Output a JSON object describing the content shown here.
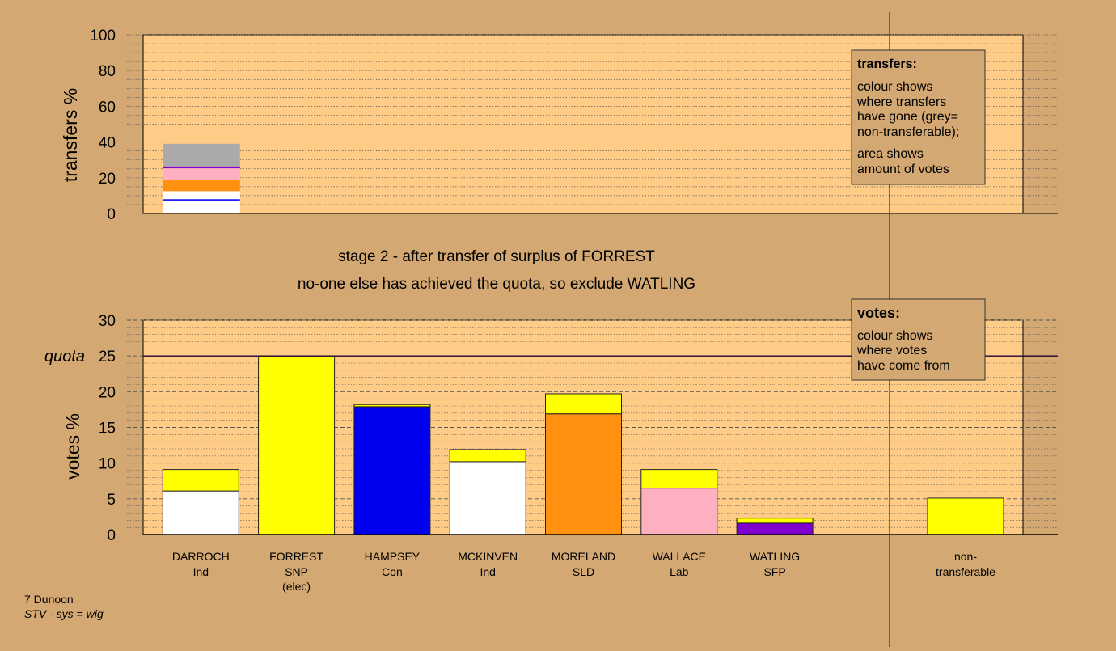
{
  "colors": {
    "background": "#d4a872",
    "plot_area": "#ffcc88",
    "legend_box": "#d4a872",
    "Ind": "#ffffff",
    "SNP": "#ffff00",
    "Con": "#0000ee",
    "SLD": "#ff9010",
    "Lab": "#ffb0c0",
    "SFP": "#8000d0",
    "non_transferable": "#aaaaaa"
  },
  "header": {
    "stage_line": "stage 2 - after transfer of surplus of FORREST",
    "action_line": "no-one else has achieved the quota, so exclude WATLING"
  },
  "footer": {
    "ward": "7 Dunoon",
    "system": "STV - sys = wig"
  },
  "transfers_legend": {
    "title": "transfers:",
    "lines_a": [
      "colour shows",
      "where transfers",
      "have gone (grey=",
      "non-transferable);"
    ],
    "lines_b": [
      "area shows",
      "amount of votes"
    ]
  },
  "votes_legend": {
    "title": "votes:",
    "lines": [
      "colour shows",
      "where votes",
      "have come from"
    ]
  },
  "chart_data": [
    {
      "id": "transfers",
      "type": "bar",
      "ylabel": "transfers %",
      "ylim": [
        0,
        100
      ],
      "yticks": [
        0,
        20,
        40,
        60,
        80,
        100
      ],
      "bar_index": 0,
      "segments": [
        {
          "party": "Ind",
          "from": 0,
          "to": 12.5,
          "color": "#ffffff",
          "marker": 7.5
        },
        {
          "party": "Con",
          "from": 7.3,
          "to": 8.0,
          "color": "#0000ee"
        },
        {
          "party": "Ind",
          "from": 12.5,
          "to": 12.5,
          "color": "#ffffff"
        },
        {
          "party": "SLD",
          "from": 12.5,
          "to": 19.0,
          "color": "#ff9010"
        },
        {
          "party": "Lab",
          "from": 19.0,
          "to": 25.3,
          "color": "#ffb0c0"
        },
        {
          "party": "SFP",
          "from": 25.3,
          "to": 26.3,
          "color": "#8000d0"
        },
        {
          "party": "non-transferable",
          "from": 26.3,
          "to": 39.0,
          "color": "#aaaaaa"
        }
      ]
    },
    {
      "id": "votes",
      "type": "bar",
      "ylabel": "votes %",
      "ylim": [
        0,
        30
      ],
      "yticks": [
        0,
        5,
        10,
        15,
        20,
        25,
        30
      ],
      "quota": 25,
      "quota_label": "quota",
      "candidates": [
        {
          "name": "DARROCH",
          "party": "Ind",
          "note": "",
          "segments": [
            {
              "value": 6.1,
              "color": "#ffffff"
            },
            {
              "value": 3.0,
              "color": "#ffff00"
            }
          ]
        },
        {
          "name": "FORREST",
          "party": "SNP",
          "note": "(elec)",
          "segments": [
            {
              "value": 25.0,
              "color": "#ffff00"
            }
          ]
        },
        {
          "name": "HAMPSEY",
          "party": "Con",
          "note": "",
          "segments": [
            {
              "value": 17.9,
              "color": "#0000ee"
            },
            {
              "value": 0.3,
              "color": "#ffff00"
            }
          ]
        },
        {
          "name": "MCKINVEN",
          "party": "Ind",
          "note": "",
          "segments": [
            {
              "value": 10.2,
              "color": "#ffffff"
            },
            {
              "value": 1.7,
              "color": "#ffff00"
            }
          ]
        },
        {
          "name": "MORELAND",
          "party": "SLD",
          "note": "",
          "segments": [
            {
              "value": 16.9,
              "color": "#ff9010"
            },
            {
              "value": 2.8,
              "color": "#ffff00"
            }
          ]
        },
        {
          "name": "WALLACE",
          "party": "Lab",
          "note": "",
          "segments": [
            {
              "value": 6.5,
              "color": "#ffb0c0"
            },
            {
              "value": 2.6,
              "color": "#ffff00"
            }
          ]
        },
        {
          "name": "WATLING",
          "party": "SFP",
          "note": "",
          "segments": [
            {
              "value": 1.6,
              "color": "#8000d0"
            },
            {
              "value": 0.7,
              "color": "#ffff00"
            }
          ]
        }
      ],
      "non_transferable": {
        "label_line1": "non-",
        "label_line2": "transferable",
        "value": 5.1,
        "color": "#ffff00"
      }
    }
  ]
}
